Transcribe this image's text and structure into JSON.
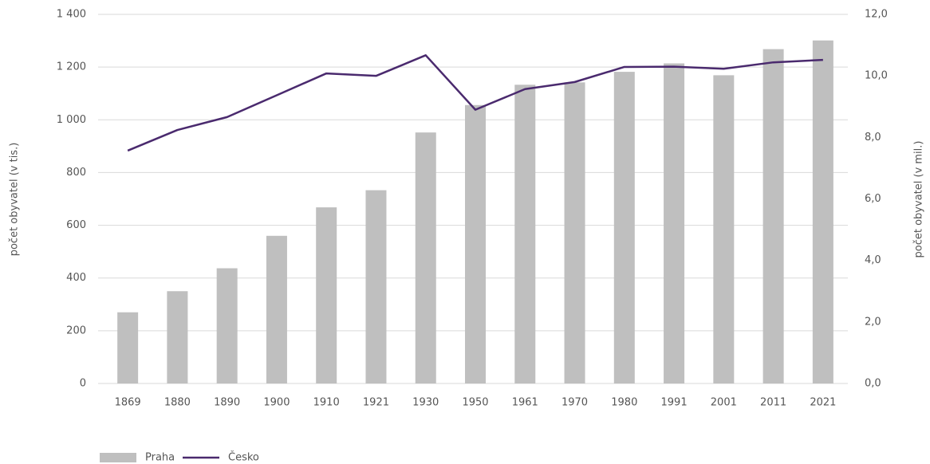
{
  "chart_data": {
    "type": "bar-line",
    "y_label": "počet obyvatel (v tis.)",
    "y2_label": "počet obyvatel (v mil.)",
    "categories": [
      "1869",
      "1880",
      "1890",
      "1900",
      "1910",
      "1921",
      "1930",
      "1950",
      "1961",
      "1970",
      "1980",
      "1991",
      "2001",
      "2011",
      "2021"
    ],
    "series": [
      {
        "name": "Praha",
        "type": "bar",
        "color": "#bfbfbf",
        "values": [
          270,
          350,
          437,
          560,
          668,
          733,
          952,
          1056,
          1133,
          1142,
          1182,
          1214,
          1169,
          1268,
          1301
        ]
      },
      {
        "name": "Česko",
        "type": "line",
        "axis": "y2",
        "color": "#4a2a6e",
        "values": [
          7.57,
          8.24,
          8.66,
          9.37,
          10.08,
          10.0,
          10.67,
          8.9,
          9.57,
          9.8,
          10.29,
          10.3,
          10.23,
          10.44,
          10.52
        ]
      }
    ],
    "ylim": [
      0,
      1400
    ],
    "yticks": [
      0,
      200,
      400,
      600,
      800,
      {
        "value": 1000,
        "label": "1 000"
      },
      {
        "value": 1200,
        "label": "1 200"
      },
      {
        "value": 1400,
        "label": "1 400"
      }
    ],
    "y2lim": [
      0,
      12
    ],
    "y2ticks": [
      {
        "value": 0,
        "label": "0,0"
      },
      {
        "value": 2,
        "label": "2,0"
      },
      {
        "value": 4,
        "label": "4,0"
      },
      {
        "value": 6,
        "label": "6,0"
      },
      {
        "value": 8,
        "label": "8,0"
      },
      {
        "value": 10,
        "label": "10,0"
      },
      {
        "value": 12,
        "label": "12,0"
      }
    ],
    "grid": true,
    "legend": "bottom-left"
  }
}
